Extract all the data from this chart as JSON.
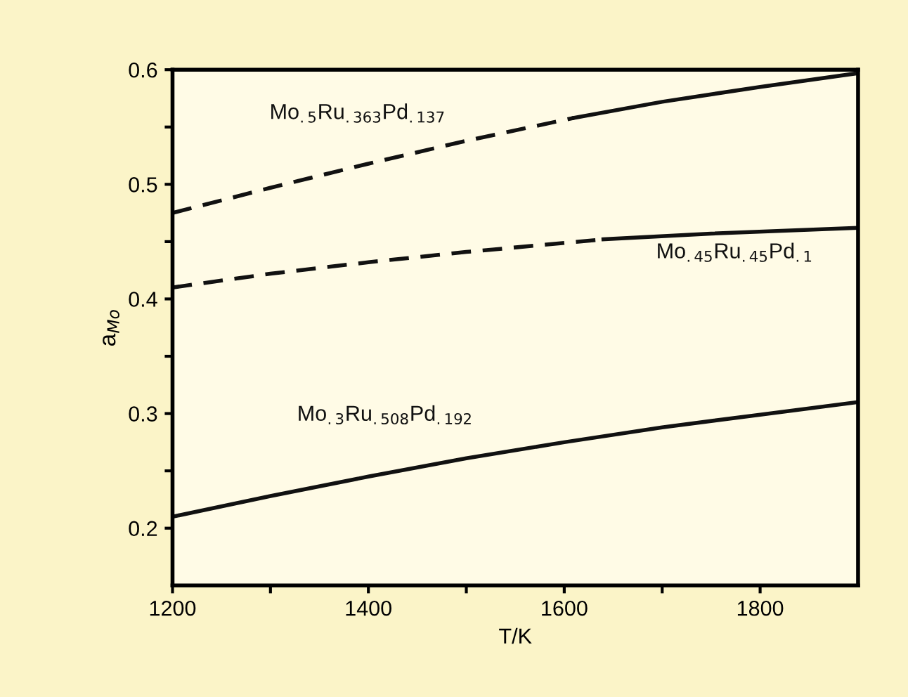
{
  "chart_data": {
    "type": "line",
    "xlabel": "T/K",
    "ylabel": "a$_{Mo}$",
    "xlim": [
      1200,
      1900
    ],
    "ylim": [
      0.15,
      0.6
    ],
    "xticks": [
      1200,
      {
        "value": 1300,
        "label": null
      },
      1400,
      {
        "value": 1500,
        "label": null
      },
      1600,
      {
        "value": 1700,
        "label": null
      },
      1800
    ],
    "yticks": [
      0.2,
      {
        "value": 0.25,
        "label": null
      },
      0.3,
      {
        "value": 0.35,
        "label": null
      },
      0.4,
      {
        "value": 0.45,
        "label": null
      },
      0.5,
      {
        "value": 0.55,
        "label": null
      },
      0.6
    ],
    "grid": false,
    "legend": false,
    "marker": "none",
    "series": [
      {
        "name": "Mo$_{.5}$Ru$_{.363}$Pd$_{.137}$",
        "color": "#111111",
        "line_style": "dashed",
        "x": [
          1200,
          1300,
          1400,
          1500,
          1610
        ],
        "values": [
          0.475,
          0.497,
          0.518,
          0.538,
          0.558
        ]
      },
      {
        "color": "#111111",
        "line_style": "solid",
        "x": [
          1610,
          1700,
          1800,
          1900
        ],
        "values": [
          0.558,
          0.572,
          0.585,
          0.597
        ]
      },
      {
        "color": "#111111",
        "line_style": "dashed",
        "x": [
          1200,
          1300,
          1400,
          1500,
          1640
        ],
        "values": [
          0.41,
          0.422,
          0.432,
          0.441,
          0.452
        ]
      },
      {
        "name": "Mo$_{.45}$Ru$_{.45}$Pd$_{.1}$",
        "color": "#111111",
        "line_style": "solid",
        "x": [
          1640,
          1750,
          1900
        ],
        "values": [
          0.452,
          0.457,
          0.462
        ]
      },
      {
        "name": "Mo$_{.3}$Ru$_{.508}$Pd$_{.192}$",
        "color": "#111111",
        "line_style": "solid",
        "x": [
          1200,
          1300,
          1400,
          1500,
          1600,
          1700,
          1800,
          1900
        ],
        "values": [
          0.21,
          0.228,
          0.245,
          0.261,
          0.275,
          0.288,
          0.299,
          0.31
        ]
      }
    ]
  }
}
